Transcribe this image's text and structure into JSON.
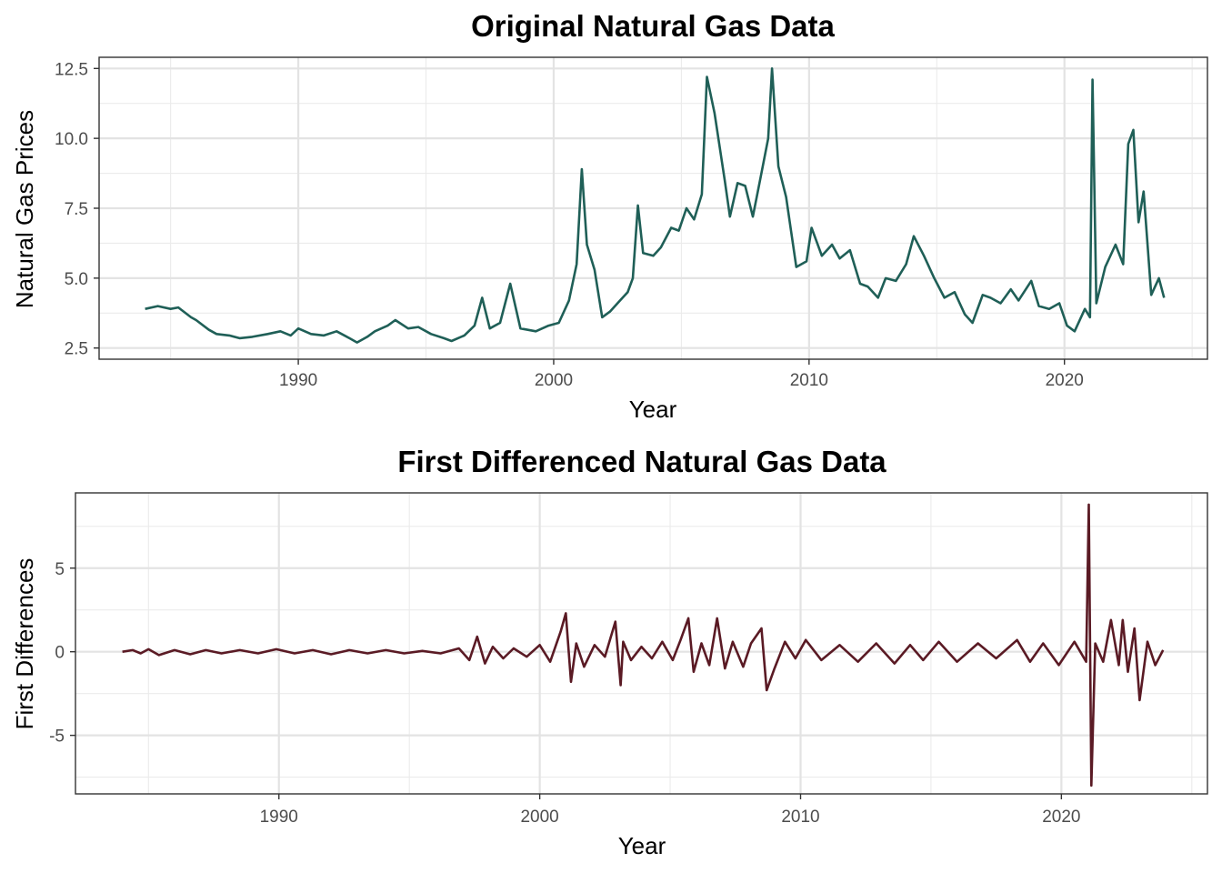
{
  "chart_data": [
    {
      "type": "line",
      "title": "Original Natural Gas Data",
      "xlabel": "Year",
      "ylabel": "Natural Gas Prices",
      "xlim": [
        1982.2,
        2025.6
      ],
      "ylim": [
        2.1,
        12.9
      ],
      "x_ticks": [
        1990,
        2000,
        2010,
        2020
      ],
      "x_tick_labels": [
        "1990",
        "2000",
        "2010",
        "2020"
      ],
      "y_ticks": [
        2.5,
        5.0,
        7.5,
        10.0,
        12.5
      ],
      "y_tick_labels": [
        "2.5",
        "5.0",
        "7.5",
        "10.0",
        "12.5"
      ],
      "grid": true,
      "color": "#1f5f57",
      "series": [
        {
          "x": [
            1984.0,
            1984.5,
            1985.0,
            1985.3,
            1985.8,
            1986.0,
            1986.5,
            1986.8,
            1987.3,
            1987.7,
            1988.2,
            1988.8,
            1989.3,
            1989.7,
            1990.0,
            1990.5,
            1991.0,
            1991.5,
            1992.0,
            1992.3,
            1992.7,
            1993.0,
            1993.5,
            1993.8,
            1994.3,
            1994.7,
            1995.2,
            1995.7,
            1996.0,
            1996.5,
            1996.9,
            1997.2,
            1997.5,
            1997.9,
            1998.3,
            1998.7,
            1999.3,
            1999.8,
            2000.2,
            2000.6,
            2000.9,
            2001.1,
            2001.3,
            2001.6,
            2001.9,
            2002.2,
            2002.6,
            2002.9,
            2003.1,
            2003.3,
            2003.5,
            2003.9,
            2004.2,
            2004.6,
            2004.9,
            2005.2,
            2005.5,
            2005.8,
            2006.0,
            2006.3,
            2006.7,
            2006.9,
            2007.2,
            2007.5,
            2007.8,
            2008.1,
            2008.4,
            2008.55,
            2008.8,
            2009.1,
            2009.5,
            2009.9,
            2010.1,
            2010.5,
            2010.9,
            2011.2,
            2011.6,
            2012.0,
            2012.3,
            2012.7,
            2013.0,
            2013.4,
            2013.8,
            2014.1,
            2014.5,
            2014.9,
            2015.3,
            2015.7,
            2016.1,
            2016.4,
            2016.8,
            2017.1,
            2017.5,
            2017.9,
            2018.2,
            2018.7,
            2019.0,
            2019.4,
            2019.8,
            2020.1,
            2020.4,
            2020.8,
            2021.0,
            2021.1,
            2021.25,
            2021.6,
            2022.0,
            2022.3,
            2022.5,
            2022.7,
            2022.9,
            2023.1,
            2023.4,
            2023.7,
            2023.9
          ],
          "y": [
            3.9,
            4.0,
            3.9,
            3.95,
            3.6,
            3.5,
            3.15,
            3.0,
            2.95,
            2.85,
            2.9,
            3.0,
            3.1,
            2.95,
            3.2,
            3.0,
            2.95,
            3.1,
            2.85,
            2.7,
            2.9,
            3.1,
            3.3,
            3.5,
            3.2,
            3.25,
            3.0,
            2.85,
            2.75,
            2.95,
            3.3,
            4.3,
            3.2,
            3.4,
            4.8,
            3.2,
            3.1,
            3.3,
            3.4,
            4.2,
            5.5,
            8.9,
            6.2,
            5.3,
            3.6,
            3.8,
            4.2,
            4.5,
            5.0,
            7.6,
            5.9,
            5.8,
            6.1,
            6.8,
            6.7,
            7.5,
            7.1,
            8.0,
            12.2,
            10.9,
            8.5,
            7.2,
            8.4,
            8.3,
            7.2,
            8.6,
            10.0,
            12.5,
            9.0,
            7.9,
            5.4,
            5.6,
            6.8,
            5.8,
            6.2,
            5.7,
            6.0,
            4.8,
            4.7,
            4.3,
            5.0,
            4.9,
            5.5,
            6.5,
            5.8,
            5.0,
            4.3,
            4.5,
            3.7,
            3.4,
            4.4,
            4.3,
            4.1,
            4.6,
            4.2,
            4.9,
            4.0,
            3.9,
            4.1,
            3.3,
            3.1,
            3.9,
            3.6,
            12.1,
            4.1,
            5.4,
            6.2,
            5.5,
            9.8,
            10.3,
            7.0,
            8.1,
            4.4,
            5.0,
            4.3
          ]
        }
      ]
    },
    {
      "type": "line",
      "title": "First Differenced Natural Gas Data",
      "xlabel": "Year",
      "ylabel": "First Differences",
      "xlim": [
        1982.2,
        2025.6
      ],
      "ylim": [
        -8.5,
        9.5
      ],
      "x_ticks": [
        1990,
        2000,
        2010,
        2020
      ],
      "x_tick_labels": [
        "1990",
        "2000",
        "2010",
        "2020"
      ],
      "y_ticks": [
        -5,
        0,
        5
      ],
      "y_tick_labels": [
        "-5",
        "0",
        "5"
      ],
      "grid": true,
      "color": "#5a1a24",
      "series": [
        {
          "x": [
            1984.0,
            1984.4,
            1984.7,
            1985.0,
            1985.4,
            1986.0,
            1986.6,
            1987.2,
            1987.8,
            1988.5,
            1989.2,
            1989.9,
            1990.6,
            1991.3,
            1992.0,
            1992.7,
            1993.4,
            1994.1,
            1994.8,
            1995.5,
            1996.2,
            1996.9,
            1997.3,
            1997.6,
            1997.9,
            1998.2,
            1998.6,
            1999.0,
            1999.5,
            2000.0,
            2000.4,
            2000.8,
            2001.0,
            2001.2,
            2001.4,
            2001.7,
            2002.1,
            2002.5,
            2002.9,
            2003.1,
            2003.2,
            2003.5,
            2003.9,
            2004.3,
            2004.7,
            2005.1,
            2005.4,
            2005.7,
            2005.9,
            2006.2,
            2006.5,
            2006.8,
            2007.1,
            2007.4,
            2007.8,
            2008.1,
            2008.5,
            2008.7,
            2009.0,
            2009.4,
            2009.8,
            2010.2,
            2010.8,
            2011.5,
            2012.2,
            2012.9,
            2013.6,
            2014.2,
            2014.7,
            2015.3,
            2016.0,
            2016.8,
            2017.5,
            2018.3,
            2018.8,
            2019.3,
            2019.9,
            2020.5,
            2020.95,
            2021.05,
            2021.15,
            2021.3,
            2021.6,
            2021.9,
            2022.2,
            2022.35,
            2022.55,
            2022.8,
            2023.0,
            2023.3,
            2023.6,
            2023.9
          ],
          "y": [
            0.0,
            0.1,
            -0.1,
            0.15,
            -0.2,
            0.1,
            -0.15,
            0.1,
            -0.1,
            0.1,
            -0.1,
            0.15,
            -0.1,
            0.1,
            -0.15,
            0.1,
            -0.1,
            0.1,
            -0.1,
            0.05,
            -0.1,
            0.2,
            -0.5,
            0.9,
            -0.7,
            0.3,
            -0.4,
            0.2,
            -0.3,
            0.4,
            -0.6,
            1.2,
            2.3,
            -1.8,
            0.5,
            -0.9,
            0.4,
            -0.3,
            1.8,
            -2.0,
            0.6,
            -0.5,
            0.3,
            -0.4,
            0.6,
            -0.5,
            0.7,
            2.0,
            -1.2,
            0.5,
            -0.8,
            2.0,
            -1.0,
            0.6,
            -0.9,
            0.5,
            1.4,
            -2.3,
            -1.0,
            0.6,
            -0.4,
            0.7,
            -0.5,
            0.4,
            -0.6,
            0.5,
            -0.7,
            0.4,
            -0.5,
            0.6,
            -0.6,
            0.5,
            -0.4,
            0.7,
            -0.6,
            0.5,
            -0.8,
            0.6,
            -0.6,
            8.8,
            -8.0,
            0.5,
            -0.6,
            1.9,
            -0.8,
            1.9,
            -1.2,
            1.4,
            -2.9,
            0.6,
            -0.8,
            0.1
          ]
        }
      ]
    }
  ]
}
